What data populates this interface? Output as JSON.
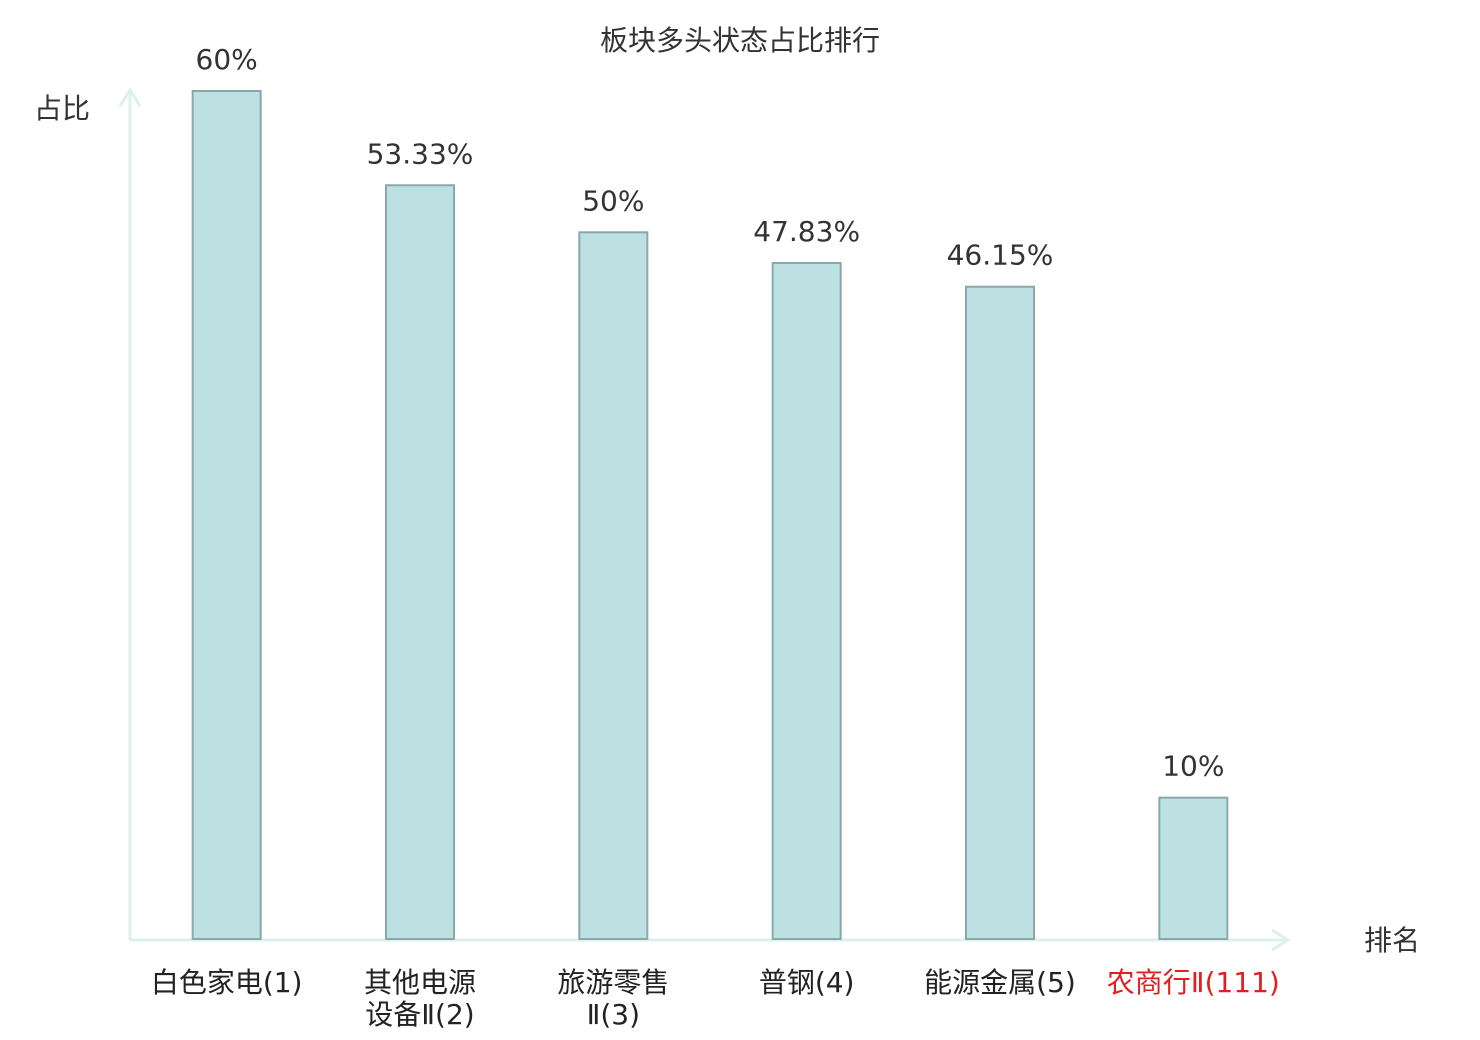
{
  "chart_data": {
    "type": "bar",
    "title": "板块多头状态占比排行",
    "y_label": "占比",
    "x_label": "排名",
    "categories": [
      "白色家电(1)",
      "其他电源设备Ⅱ(2)",
      "旅游零售Ⅱ(3)",
      "普钢(4)",
      "能源金属(5)",
      "农商行Ⅱ(111)"
    ],
    "category_colors": [
      "#222222",
      "#222222",
      "#222222",
      "#222222",
      "#222222",
      "#e02020"
    ],
    "values": [
      60,
      53.33,
      50,
      47.83,
      46.15,
      10
    ],
    "value_labels": [
      "60%",
      "53.33%",
      "50%",
      "47.83%",
      "46.15%",
      "10%"
    ],
    "color": "#bde0e3",
    "edge_color": "#8aa8ab",
    "ylim": [
      0,
      60
    ]
  }
}
